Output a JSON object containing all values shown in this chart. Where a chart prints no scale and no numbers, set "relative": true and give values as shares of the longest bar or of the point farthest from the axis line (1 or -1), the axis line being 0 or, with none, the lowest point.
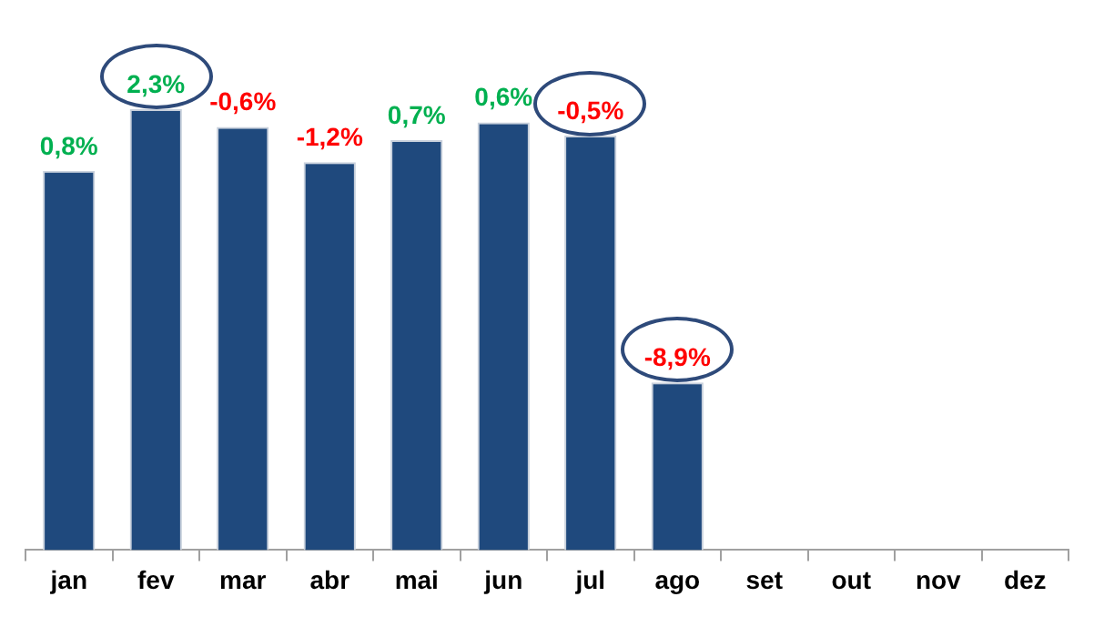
{
  "chart_data": {
    "type": "bar",
    "relative": true,
    "categories": [
      "jan",
      "fev",
      "mar",
      "abr",
      "mai",
      "jun",
      "jul",
      "ago",
      "set",
      "out",
      "nov",
      "dez"
    ],
    "values": [
      0.86,
      1,
      0.96,
      0.88,
      0.93,
      0.97,
      0.94,
      0.38,
      null,
      null,
      null,
      null
    ],
    "annotations": [
      {
        "text": "0,8%",
        "x": "jan",
        "y": 0.86
      },
      {
        "text": "2,3%",
        "x": "fev",
        "y": 1
      },
      {
        "text": "-0,6%",
        "x": "mar",
        "y": 0.96
      },
      {
        "text": "-1,2%",
        "x": "abr",
        "y": 0.88
      },
      {
        "text": "0,7%",
        "x": "mai",
        "y": 0.93
      },
      {
        "text": "0,6%",
        "x": "jun",
        "y": 0.97
      },
      {
        "text": "-0,5%",
        "x": "jul",
        "y": 0.94
      },
      {
        "text": "-8,9%",
        "x": "ago",
        "y": 0.38
      }
    ],
    "color": "#1f497d",
    "grid": false,
    "legend": false
  }
}
